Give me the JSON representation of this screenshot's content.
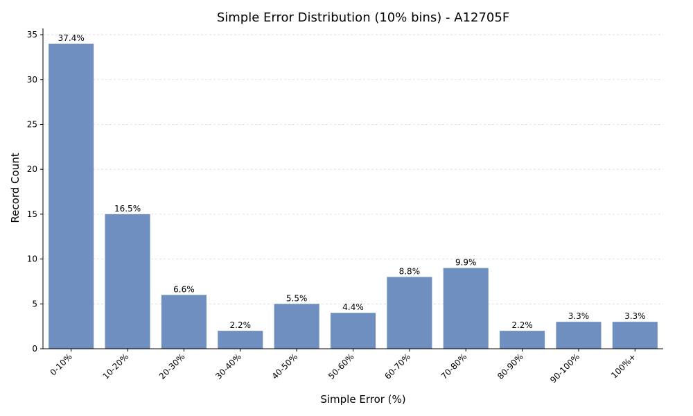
{
  "chart_data": {
    "type": "bar",
    "title": "Simple Error Distribution (10% bins) - A12705F",
    "xlabel": "Simple Error (%)",
    "ylabel": "Record Count",
    "categories": [
      "0-10%",
      "10-20%",
      "20-30%",
      "30-40%",
      "40-50%",
      "50-60%",
      "60-70%",
      "70-80%",
      "80-90%",
      "90-100%",
      "100%+"
    ],
    "values": [
      34,
      15,
      6,
      2,
      5,
      4,
      8,
      9,
      2,
      3,
      3
    ],
    "data_labels": [
      "37.4%",
      "16.5%",
      "6.6%",
      "2.2%",
      "5.5%",
      "4.4%",
      "8.8%",
      "9.9%",
      "2.2%",
      "3.3%",
      "3.3%"
    ],
    "yticks": [
      0,
      5,
      10,
      15,
      20,
      25,
      30,
      35
    ],
    "ylim": [
      0,
      35.7
    ],
    "grid": true,
    "bar_color": "#6f8fc0"
  }
}
